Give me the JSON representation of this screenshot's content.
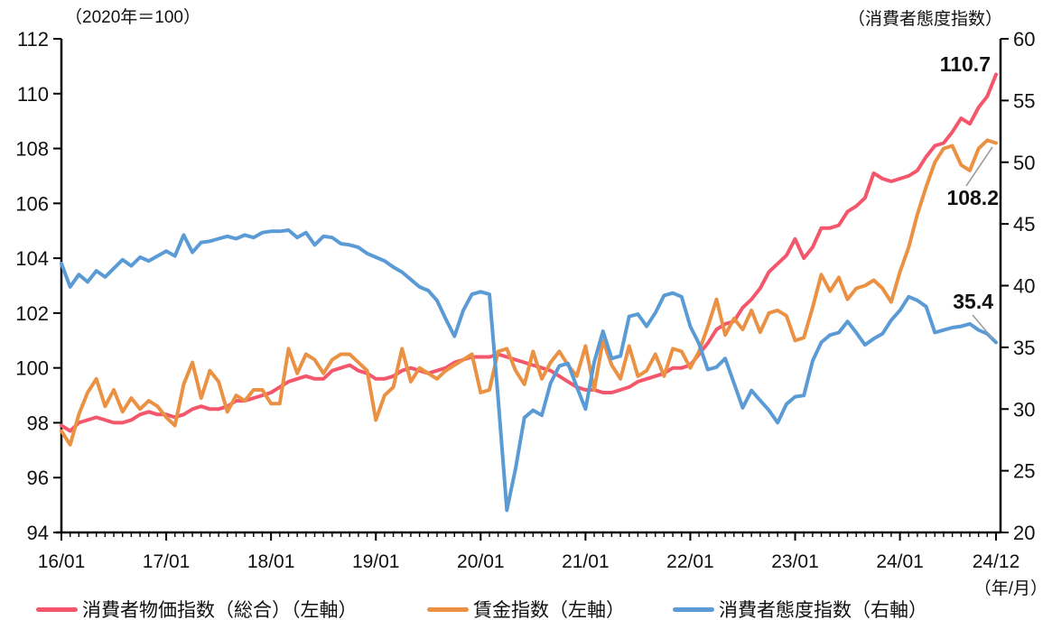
{
  "header": {
    "left_axis_title": "（2020年＝100）",
    "right_axis_title": "（消費者態度指数）"
  },
  "footer": {
    "x_axis_unit": "（年/月）"
  },
  "chart_data": {
    "type": "line",
    "x_frequency": "monthly",
    "x_start": "16/01",
    "x_end": "24/12",
    "n_points": 108,
    "x_ticks": [
      {
        "i": 0,
        "label": "16/01"
      },
      {
        "i": 12,
        "label": "17/01"
      },
      {
        "i": 24,
        "label": "18/01"
      },
      {
        "i": 36,
        "label": "19/01"
      },
      {
        "i": 48,
        "label": "20/01"
      },
      {
        "i": 60,
        "label": "21/01"
      },
      {
        "i": 72,
        "label": "22/01"
      },
      {
        "i": 84,
        "label": "23/01"
      },
      {
        "i": 96,
        "label": "24/01"
      },
      {
        "i": 107,
        "label": "24/12"
      }
    ],
    "y_left": {
      "min": 94,
      "max": 112,
      "ticks": [
        94,
        96,
        98,
        100,
        102,
        104,
        106,
        108,
        110,
        112
      ]
    },
    "y_right": {
      "min": 20,
      "max": 60,
      "ticks": [
        20,
        25,
        30,
        35,
        40,
        45,
        50,
        55,
        60
      ]
    },
    "grid": false,
    "legend_position": "bottom",
    "series": [
      {
        "name": "消費者物価指数（総合）（左軸）",
        "axis": "left",
        "color": "#f4566b",
        "values": [
          97.9,
          97.7,
          98.0,
          98.1,
          98.2,
          98.1,
          98.0,
          98.0,
          98.1,
          98.3,
          98.4,
          98.3,
          98.3,
          98.2,
          98.3,
          98.5,
          98.6,
          98.5,
          98.5,
          98.6,
          98.8,
          98.8,
          98.9,
          99.0,
          99.1,
          99.3,
          99.5,
          99.6,
          99.7,
          99.6,
          99.6,
          99.9,
          100.0,
          100.1,
          99.9,
          99.8,
          99.6,
          99.6,
          99.7,
          99.9,
          100.0,
          99.9,
          99.8,
          99.9,
          100.0,
          100.2,
          100.3,
          100.4,
          100.4,
          100.4,
          100.5,
          100.4,
          100.3,
          100.2,
          100.1,
          100.0,
          99.9,
          99.7,
          99.5,
          99.3,
          99.2,
          99.2,
          99.1,
          99.1,
          99.2,
          99.3,
          99.5,
          99.6,
          99.7,
          99.8,
          100.0,
          100.0,
          100.1,
          100.5,
          100.9,
          101.4,
          101.6,
          101.7,
          102.2,
          102.5,
          102.9,
          103.5,
          103.8,
          104.1,
          104.7,
          104.0,
          104.4,
          105.1,
          105.1,
          105.2,
          105.7,
          105.9,
          106.2,
          107.1,
          106.9,
          106.8,
          106.9,
          107.0,
          107.2,
          107.7,
          108.1,
          108.2,
          108.6,
          109.1,
          108.9,
          109.5,
          109.9,
          110.7
        ]
      },
      {
        "name": "賃金指数（左軸）",
        "axis": "left",
        "color": "#ea9144",
        "values": [
          97.7,
          97.2,
          98.3,
          99.1,
          99.6,
          98.6,
          99.2,
          98.4,
          98.9,
          98.5,
          98.8,
          98.6,
          98.2,
          97.9,
          99.4,
          100.2,
          98.9,
          99.9,
          99.5,
          98.4,
          99.0,
          98.8,
          99.2,
          99.2,
          98.7,
          98.7,
          100.7,
          99.8,
          100.5,
          100.3,
          99.8,
          100.3,
          100.5,
          100.5,
          100.2,
          99.9,
          98.1,
          99.0,
          99.3,
          100.7,
          99.5,
          100.0,
          99.8,
          99.6,
          99.9,
          100.1,
          100.3,
          100.5,
          99.1,
          99.2,
          100.6,
          100.7,
          99.9,
          99.4,
          100.6,
          99.6,
          100.2,
          100.6,
          100.1,
          99.7,
          100.8,
          99.2,
          101.0,
          100.1,
          99.6,
          100.8,
          99.7,
          99.9,
          100.5,
          99.7,
          100.7,
          100.6,
          100.0,
          100.6,
          101.5,
          102.5,
          101.2,
          101.8,
          101.4,
          102.1,
          101.3,
          102.0,
          102.1,
          101.9,
          101.0,
          101.1,
          102.2,
          103.4,
          102.8,
          103.3,
          102.5,
          102.9,
          103.0,
          103.2,
          102.9,
          102.4,
          103.5,
          104.4,
          105.6,
          106.6,
          107.5,
          108.0,
          108.1,
          107.4,
          107.2,
          108.0,
          108.3,
          108.2
        ]
      },
      {
        "name": "消費者態度指数（右軸）",
        "axis": "right",
        "color": "#5b9bd5",
        "values": [
          41.8,
          39.9,
          40.9,
          40.3,
          41.2,
          40.7,
          41.4,
          42.1,
          41.6,
          42.3,
          42.0,
          42.4,
          42.8,
          42.4,
          44.1,
          42.7,
          43.5,
          43.6,
          43.8,
          44.0,
          43.8,
          44.1,
          43.9,
          44.3,
          44.4,
          44.4,
          44.5,
          43.9,
          44.3,
          43.3,
          44.0,
          43.9,
          43.4,
          43.3,
          43.1,
          42.6,
          42.3,
          42.0,
          41.5,
          41.1,
          40.5,
          39.9,
          39.6,
          38.8,
          37.3,
          35.9,
          38.0,
          39.3,
          39.5,
          39.3,
          30.9,
          21.8,
          25.2,
          29.3,
          29.9,
          29.5,
          32.1,
          33.5,
          33.7,
          31.8,
          30.0,
          33.8,
          36.3,
          34.1,
          34.3,
          37.5,
          37.7,
          36.7,
          37.8,
          39.2,
          39.4,
          39.1,
          36.7,
          35.3,
          33.2,
          33.4,
          34.1,
          32.1,
          30.1,
          31.5,
          30.7,
          29.9,
          28.9,
          30.4,
          31.0,
          31.1,
          33.9,
          35.4,
          36.0,
          36.2,
          37.1,
          36.2,
          35.2,
          35.7,
          36.1,
          37.2,
          38.0,
          39.1,
          38.8,
          38.3,
          36.2,
          36.4,
          36.6,
          36.7,
          36.9,
          36.4,
          36.1,
          35.4
        ]
      }
    ],
    "annotations": [
      {
        "text": "110.7",
        "series_index": 0
      },
      {
        "text": "108.2",
        "series_index": 1
      },
      {
        "text": "35.4",
        "series_index": 2
      }
    ],
    "leader_line_color": "#9e9e9e"
  }
}
